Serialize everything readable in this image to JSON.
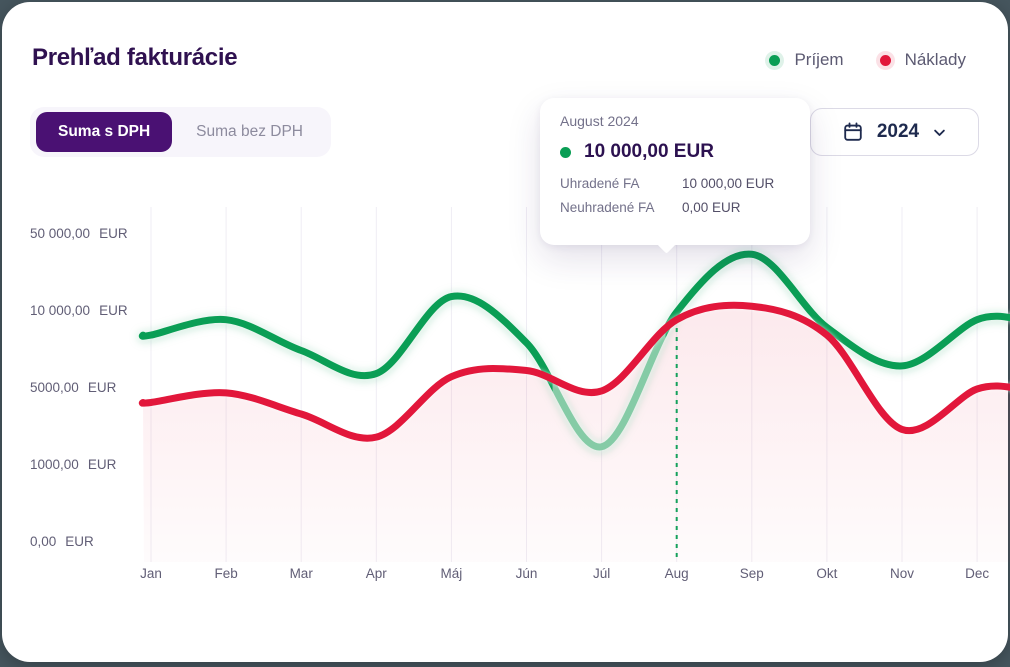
{
  "header": {
    "title": "Prehľad fakturácie"
  },
  "legend": {
    "items": [
      {
        "label": "Príjem",
        "color": "#0a9e55"
      },
      {
        "label": "Náklady",
        "color": "#e2173b"
      }
    ]
  },
  "controls": {
    "vat_toggle": {
      "options": [
        {
          "label": "Suma s DPH",
          "active": true
        },
        {
          "label": "Suma bez DPH",
          "active": false
        }
      ]
    },
    "year_select": {
      "value": "2024",
      "icon": "calendar-icon"
    }
  },
  "tooltip": {
    "period": "August 2024",
    "series": "Príjem",
    "highlight_value": "10 000,00 EUR",
    "rows": [
      {
        "label": "Uhradené FA",
        "value": "10 000,00 EUR"
      },
      {
        "label": "Neuhradené FA",
        "value": "0,00 EUR"
      }
    ]
  },
  "colors": {
    "accent_purple": "#4a1173",
    "title_text": "#2f1150",
    "page_background": "#46565e",
    "income_green": "#0a9e55",
    "income_green_dimmed": "#85cba6",
    "cost_red": "#e2173b"
  },
  "chart_data": {
    "type": "line",
    "title": "Prehľad fakturácie",
    "categories": [
      "Jan",
      "Feb",
      "Mar",
      "Apr",
      "Máj",
      "Jún",
      "Júl",
      "Aug",
      "Sep",
      "Okt",
      "Nov",
      "Dec"
    ],
    "series": [
      {
        "name": "Príjem",
        "color": "#0a9e55",
        "dimmed_color": "#85cba6",
        "values": [
          8500,
          9500,
          7500,
          6000,
          18000,
          8000,
          2000,
          10000,
          40000,
          9000,
          6500,
          9500
        ]
      },
      {
        "name": "Náklady",
        "color": "#e2173b",
        "area_fill": "#e2173b",
        "values": [
          4300,
          4800,
          3700,
          2500,
          5800,
          6200,
          4900,
          9500,
          13000,
          8500,
          2900,
          5000
        ]
      }
    ],
    "y_axis": {
      "scale": "non-linear-equal-tick-spacing",
      "ticks": [
        {
          "value": 50000,
          "label": "50 000,00",
          "currency": "EUR"
        },
        {
          "value": 10000,
          "label": "10 000,00",
          "currency": "EUR"
        },
        {
          "value": 5000,
          "label": "5000,00",
          "currency": "EUR"
        },
        {
          "value": 1000,
          "label": "1000,00",
          "currency": "EUR"
        },
        {
          "value": 0,
          "label": "0,00",
          "currency": "EUR"
        }
      ]
    },
    "highlight": {
      "month": "Aug",
      "series": "Príjem",
      "value": 10000
    },
    "legend_position": "top-right",
    "grid": "vertical-only"
  }
}
